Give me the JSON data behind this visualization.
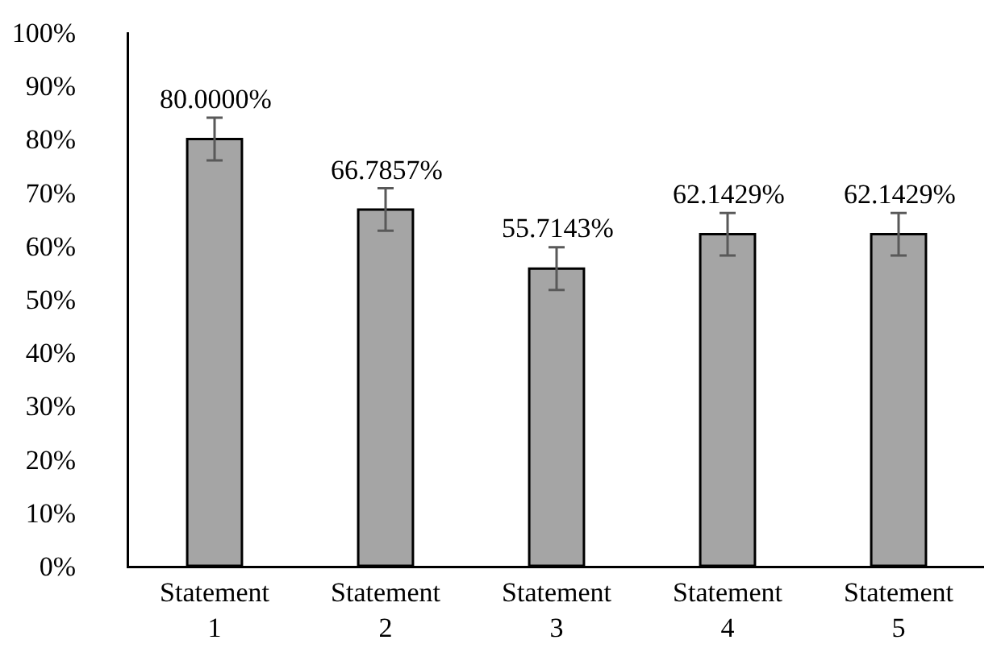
{
  "chart_data": {
    "type": "bar",
    "categories": [
      "Statement 1",
      "Statement 2",
      "Statement 3",
      "Statement 4",
      "Statement 5"
    ],
    "values": [
      80,
      66.7857,
      55.7143,
      62.1429,
      62.1429
    ],
    "value_labels": [
      "80.0000%",
      "66.7857%",
      "55.7143%",
      "62.1429%",
      "62.1429%"
    ],
    "errors": [
      4,
      4,
      4,
      4,
      4
    ],
    "color": "#a5a5a5",
    "ylim": [
      0,
      100
    ],
    "yticks": [
      {
        "value": 0,
        "label": "0%"
      },
      {
        "value": 10,
        "label": "10%"
      },
      {
        "value": 20,
        "label": "20%"
      },
      {
        "value": 30,
        "label": "30%"
      },
      {
        "value": 40,
        "label": "40%"
      },
      {
        "value": 50,
        "label": "50%"
      },
      {
        "value": 60,
        "label": "60%"
      },
      {
        "value": 70,
        "label": "70%"
      },
      {
        "value": 80,
        "label": "80%"
      },
      {
        "value": 90,
        "label": "90%"
      },
      {
        "value": 100,
        "label": "100%"
      }
    ],
    "grid": false
  }
}
